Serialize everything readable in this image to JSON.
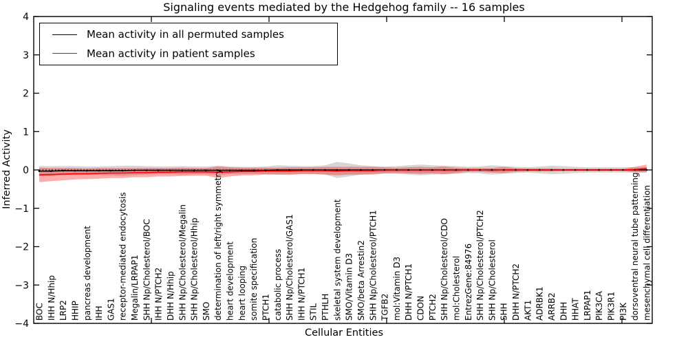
{
  "title": "Signaling events mediated by the Hedgehog family -- 16 samples",
  "axes": {
    "xlabel": "Cellular Entities",
    "ylabel": "Inferred Activity",
    "ytick_labels": [
      "4",
      "3",
      "2",
      "1",
      "0",
      "−1",
      "−2",
      "−3",
      "−4"
    ],
    "ytick_values": [
      4,
      3,
      2,
      1,
      0,
      -1,
      -2,
      -3,
      -4
    ]
  },
  "legend": {
    "items": [
      {
        "label": "Mean activity in all permuted samples",
        "color": "#000000"
      },
      {
        "label": "Mean activity in patient samples",
        "color": "#ff0000"
      }
    ]
  },
  "colors": {
    "permuted_line": "#000000",
    "patient_line": "#ff0000",
    "permuted_band": "#808080",
    "patient_band": "#ff0000",
    "frame": "#000000",
    "background": "#ffffff"
  },
  "chart_data": {
    "type": "line",
    "title": "Signaling events mediated by the Hedgehog family -- 16 samples",
    "xlabel": "Cellular Entities",
    "ylabel": "Inferred Activity",
    "ylim": [
      -4,
      4
    ],
    "grid": false,
    "legend_position": "upper left",
    "zero_line": true,
    "categories": [
      "BOC",
      "IHH N/Hhip",
      "LRP2",
      "HHIP",
      "pancreas development",
      "IHH",
      "GAS1",
      "receptor-mediated endocytosis",
      "Megalin/LRPAP1",
      "SHH Np/Cholesterol/BOC",
      "IHH N/PTCH2",
      "DHH N/Hhip",
      "SHH Np/Cholesterol/Megalin",
      "SHH Np/Cholesterol/Hhip",
      "SMO",
      "determination of left/right symmetry",
      "heart development",
      "heart looping",
      "somite specification",
      "PTCH1",
      "catabolic process",
      "SHH Np/Cholesterol/GAS1",
      "IHH N/PTCH1",
      "STIL",
      "PTHLH",
      "skeletal system development",
      "SMO/Vitamin D3",
      "SMO/beta Arrestin2",
      "SHH Np/Cholesterol/PTCH1",
      "TGFB2",
      "mol:Vitamin D3",
      "DHH N/PTCH1",
      "CDON",
      "PTCH2",
      "SHH Np/Cholesterol/CDO",
      "mol:Cholesterol",
      "EntrezGene:84976",
      "SHH Np/Cholesterol/PTCH2",
      "SHH Np/Cholesterol",
      "SHH",
      "DHH N/PTCH2",
      "AKT1",
      "ADRBK1",
      "ARRB2",
      "DHH",
      "HHAT",
      "LRPAP1",
      "PIK3CA",
      "PIK3R1",
      "PI3K",
      "dorsoventral neural tube patterning",
      "mesenchymal cell differentiation"
    ],
    "series": [
      {
        "name": "Mean activity in all permuted samples",
        "color": "#000000",
        "band_color": "#808080",
        "band_opacity": 0.32,
        "mean": [
          -0.03,
          -0.03,
          -0.02,
          -0.02,
          -0.02,
          -0.02,
          -0.02,
          -0.02,
          -0.01,
          -0.01,
          -0.01,
          -0.01,
          -0.01,
          -0.01,
          -0.01,
          -0.01,
          -0.01,
          -0.01,
          -0.01,
          -0.01,
          0,
          0,
          0,
          0,
          0,
          0,
          0,
          0,
          0,
          0,
          0,
          0,
          0,
          0,
          0,
          0,
          0,
          0,
          0,
          0,
          0,
          0,
          0,
          0,
          0,
          0,
          0,
          0,
          0,
          0,
          0,
          0
        ],
        "std": [
          0.13,
          0.13,
          0.12,
          0.12,
          0.11,
          0.11,
          0.12,
          0.13,
          0.12,
          0.11,
          0.1,
          0.1,
          0.11,
          0.1,
          0.1,
          0.12,
          0.1,
          0.09,
          0.09,
          0.1,
          0.12,
          0.11,
          0.1,
          0.1,
          0.12,
          0.21,
          0.17,
          0.12,
          0.1,
          0.09,
          0.1,
          0.12,
          0.14,
          0.12,
          0.11,
          0.1,
          0.08,
          0.09,
          0.12,
          0.1,
          0.08,
          0.07,
          0.09,
          0.11,
          0.1,
          0.08,
          0.07,
          0.07,
          0.07,
          0.07,
          0.07,
          0.07
        ]
      },
      {
        "name": "Mean activity in patient samples",
        "color": "#ff0000",
        "band_color": "#ff0000",
        "band_opacity": 0.33,
        "mean": [
          -0.13,
          -0.12,
          -0.11,
          -0.1,
          -0.1,
          -0.09,
          -0.08,
          -0.08,
          -0.07,
          -0.07,
          -0.06,
          -0.06,
          -0.05,
          -0.05,
          -0.05,
          -0.06,
          -0.05,
          -0.04,
          -0.04,
          -0.03,
          -0.03,
          -0.03,
          -0.02,
          -0.02,
          -0.02,
          -0.03,
          -0.02,
          -0.02,
          -0.02,
          -0.01,
          -0.01,
          -0.01,
          -0.01,
          -0.01,
          -0.01,
          -0.01,
          0,
          0,
          -0.01,
          0,
          0,
          0,
          0,
          0,
          0,
          0,
          0,
          0,
          0,
          0,
          0.01,
          0.04
        ],
        "std": [
          0.19,
          0.17,
          0.16,
          0.15,
          0.14,
          0.14,
          0.13,
          0.13,
          0.12,
          0.12,
          0.11,
          0.11,
          0.11,
          0.1,
          0.1,
          0.15,
          0.12,
          0.1,
          0.1,
          0.09,
          0.09,
          0.1,
          0.09,
          0.09,
          0.1,
          0.11,
          0.1,
          0.1,
          0.1,
          0.08,
          0.07,
          0.08,
          0.09,
          0.08,
          0.1,
          0.07,
          0.05,
          0.05,
          0.06,
          0.08,
          0.05,
          0.04,
          0.04,
          0.04,
          0.03,
          0.03,
          0.03,
          0.03,
          0.03,
          0.03,
          0.07,
          0.1
        ]
      }
    ]
  }
}
